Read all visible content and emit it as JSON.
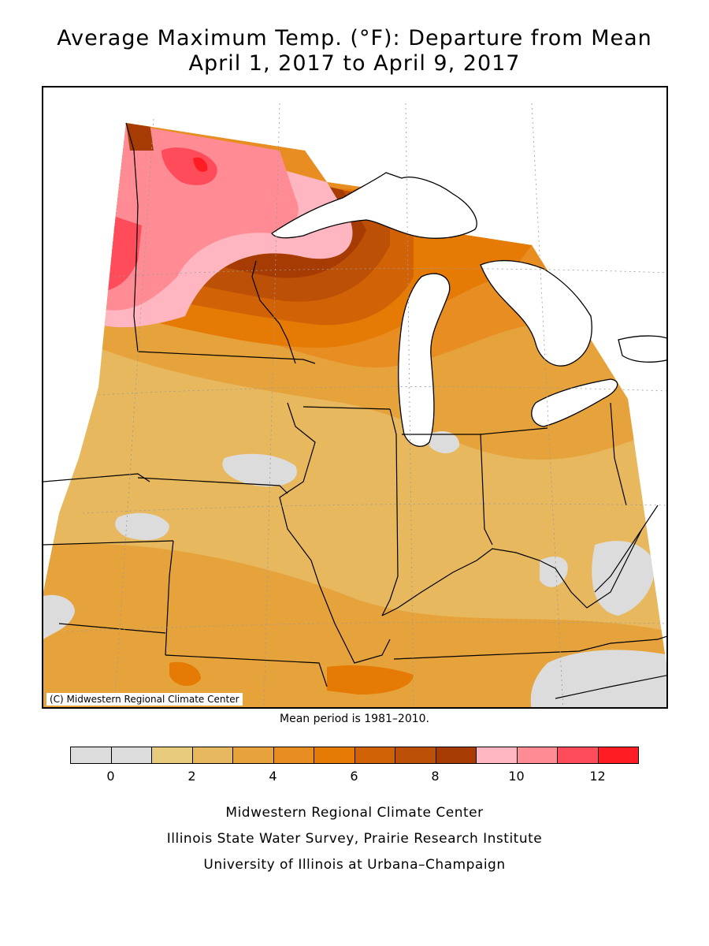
{
  "title_line1": "Average Maximum Temp. (°F): Departure from Mean",
  "title_line2": "April 1, 2017 to April 9, 2017",
  "credit": "(C) Midwestern Regional Climate Center",
  "mean_period": "Mean period is 1981–2010.",
  "legend": {
    "bins": [
      {
        "color": "#dcdcdc"
      },
      {
        "color": "#dcdcdc"
      },
      {
        "color": "#e9cb7e"
      },
      {
        "color": "#e7b85e"
      },
      {
        "color": "#e6a33c"
      },
      {
        "color": "#e88d22"
      },
      {
        "color": "#e57a05"
      },
      {
        "color": "#d26206"
      },
      {
        "color": "#bc5006"
      },
      {
        "color": "#a63c03"
      },
      {
        "color": "#ffb6c1"
      },
      {
        "color": "#ff8c94"
      },
      {
        "color": "#ff4c5b"
      },
      {
        "color": "#ff1c22"
      }
    ],
    "labels": [
      "0",
      "2",
      "4",
      "6",
      "8",
      "10",
      "12"
    ]
  },
  "footer": {
    "line1": "Midwestern Regional Climate Center",
    "line2": "Illinois State Water Survey, Prairie Research Institute",
    "line3": "University of Illinois at Urbana–Champaign"
  },
  "colors": {
    "gray": "#dcdcdc",
    "c1": "#e9cb7e",
    "c2": "#e7b85e",
    "c3": "#e6a33c",
    "c4": "#e88d22",
    "c5": "#e57a05",
    "c6": "#d26206",
    "c7": "#bc5006",
    "c8": "#a63c03",
    "p1": "#ffb6c1",
    "p2": "#ff8c94",
    "p3": "#ff4c5b",
    "p4": "#ff1c22"
  }
}
